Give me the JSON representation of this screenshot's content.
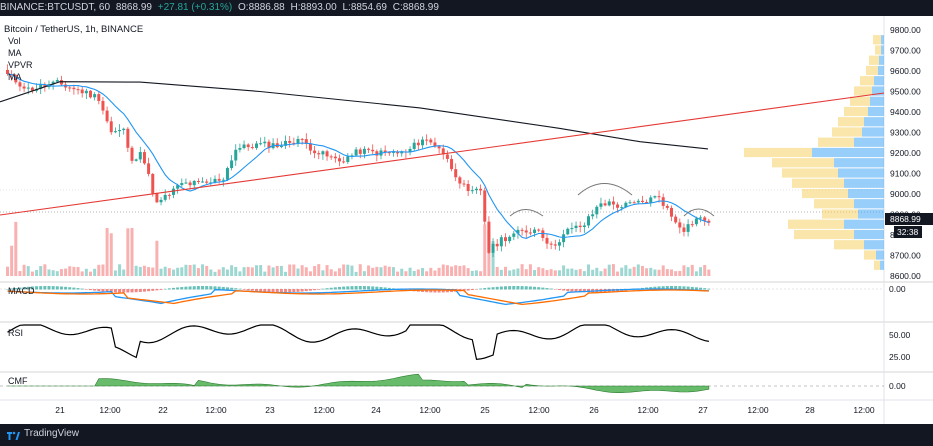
{
  "header": {
    "symbol": "BINANCE:BTCUSDT, 60",
    "price": "8868.99",
    "change": "+27.81 (+0.31%)",
    "open_label": "O:",
    "open": "8886.88",
    "high_label": "H:",
    "high": "8893.00",
    "low_label": "L:",
    "low": "8854.69",
    "close_label": "C:",
    "close": "8868.99"
  },
  "chart": {
    "title": "Bitcoin / TetherUS, 1h, BINANCE",
    "indicators": [
      "Vol",
      "MA",
      "VPVR",
      "MA"
    ],
    "price_axis": [
      "9800.00",
      "9700.00",
      "9600.00",
      "9500.00",
      "9400.00",
      "9300.00",
      "9200.00",
      "9100.00",
      "9000.00",
      "8900.00",
      "8800.00",
      "8700.00",
      "8600.00"
    ],
    "last_price_tag": "8868.99",
    "countdown_tag": "32:38",
    "colors": {
      "up": "#26a69a",
      "down": "#ef5350",
      "ma_fast": "#2196f3",
      "ma_slow": "#131722",
      "trendline": "#e53935",
      "vp_up": "#42a5f5",
      "vp_down": "#f5c842"
    }
  },
  "panes": {
    "macd": {
      "label": "MACD",
      "axis": "0.00"
    },
    "rsi": {
      "label": "RSI",
      "axis_top": "50.00",
      "axis_bottom": "25.00"
    },
    "cmf": {
      "label": "CMF",
      "axis": "0.00"
    }
  },
  "time_axis": [
    "21",
    "12:00",
    "22",
    "12:00",
    "23",
    "12:00",
    "24",
    "12:00",
    "25",
    "12:00",
    "26",
    "12:00",
    "27",
    "12:00",
    "28",
    "12:00"
  ],
  "footer": {
    "brand": "TradingView",
    "logo_icon": "tradingview-logo-icon"
  },
  "chart_data": {
    "type": "candlestick",
    "x": [
      "21",
      "12:00",
      "22",
      "12:00",
      "23",
      "12:00",
      "24",
      "12:00",
      "25",
      "12:00",
      "26",
      "12:00",
      "27"
    ],
    "close": [
      9505,
      9420,
      8980,
      9220,
      9230,
      9190,
      9205,
      9190,
      8780,
      8830,
      8985,
      8860,
      8869
    ],
    "ylim": [
      8600,
      9800
    ],
    "legend": "none"
  }
}
